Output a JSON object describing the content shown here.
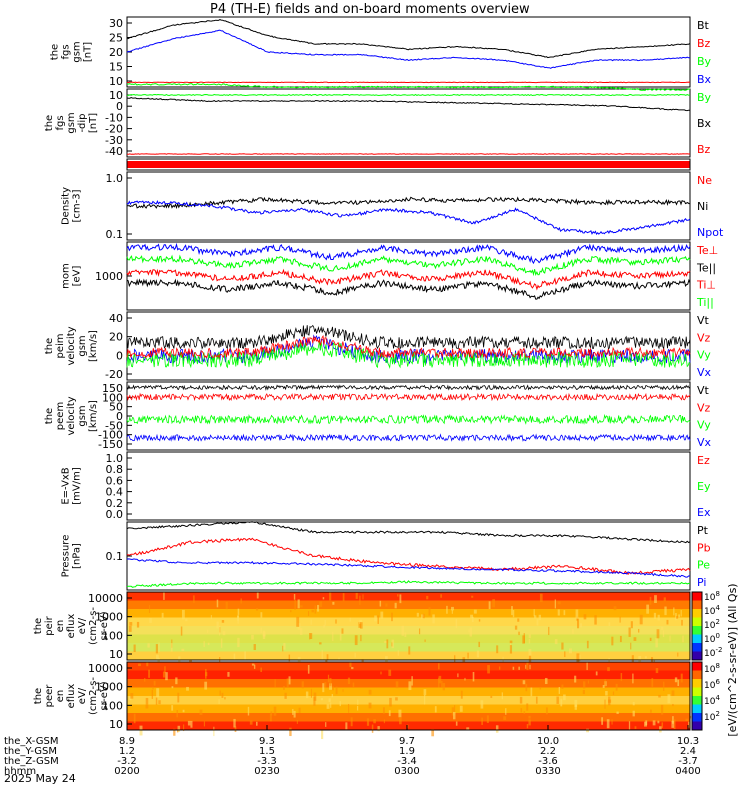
{
  "title": "P4 (TH-E) fields and on-board moments overview",
  "date": "2025 May 24",
  "colors": {
    "black": "#000000",
    "red": "#ff0000",
    "green": "#00ff00",
    "blue": "#0000ff"
  },
  "chart_data": [
    {
      "id": "fgs_mag",
      "type": "line",
      "ylabel": [
        "the",
        "fgs",
        "gsm",
        "[nT]"
      ],
      "yticks": [
        "30",
        "25",
        "20",
        "15",
        "10"
      ],
      "legend": [
        {
          "label": "Bt",
          "color": "#000000"
        },
        {
          "label": "Bz",
          "color": "#ff0000"
        },
        {
          "label": "By",
          "color": "#00ff00"
        },
        {
          "label": "Bx",
          "color": "#0000ff"
        }
      ],
      "series": [
        {
          "name": "Bt",
          "approx": [
            26,
            31,
            33,
            27,
            24,
            24,
            22,
            23,
            22,
            19,
            22,
            23,
            24
          ]
        },
        {
          "name": "By",
          "approx": [
            21,
            26,
            29,
            21,
            20,
            20,
            18,
            19,
            18,
            15,
            18,
            18,
            19
          ]
        },
        {
          "name": "Bx",
          "approx": [
            9,
            9,
            9,
            8,
            8,
            8,
            8,
            8,
            8,
            8,
            8,
            7,
            7
          ]
        }
      ]
    },
    {
      "id": "fgs_comp",
      "type": "line",
      "ylabel": [
        "the",
        "fgs",
        "gsm",
        "-dip",
        "[nT]"
      ],
      "yticks": [
        "10",
        "0",
        "-10",
        "-20",
        "-30",
        "-40"
      ],
      "legend": [
        {
          "label": "By",
          "color": "#00ff00"
        },
        {
          "label": "Bx",
          "color": "#000000"
        },
        {
          "label": "Bz",
          "color": "#ff0000"
        }
      ]
    },
    {
      "id": "efield_bar",
      "type": "bar"
    },
    {
      "id": "density",
      "type": "line",
      "ylabel": [
        "Density",
        "[cm-3]"
      ],
      "yticks": [
        "1.0",
        "0.1"
      ],
      "legend": [
        {
          "label": "Ne",
          "color": "#ff0000"
        },
        {
          "label": "Ni",
          "color": "#000000"
        },
        {
          "label": "Npot",
          "color": "#0000ff"
        }
      ]
    },
    {
      "id": "temp",
      "type": "line",
      "ylabel": [
        "mom",
        "[eV]"
      ],
      "yticks": [
        "1000"
      ],
      "legend": [
        {
          "label": "Te⊥",
          "color": "#ff0000"
        },
        {
          "label": "Te||",
          "color": "#000000"
        },
        {
          "label": "Ti⊥",
          "color": "#ff0000"
        },
        {
          "label": "Ti||",
          "color": "#00ff00"
        }
      ]
    },
    {
      "id": "peim_vel",
      "type": "line",
      "ylabel": [
        "the",
        "peim",
        "velocity",
        "gsm",
        "[km/s]"
      ],
      "yticks": [
        "40",
        "20",
        "0",
        "-20"
      ],
      "legend": [
        {
          "label": "Vt",
          "color": "#000000"
        },
        {
          "label": "Vz",
          "color": "#ff0000"
        },
        {
          "label": "Vy",
          "color": "#00ff00"
        },
        {
          "label": "Vx",
          "color": "#0000ff"
        }
      ]
    },
    {
      "id": "peem_vel",
      "type": "line",
      "ylabel": [
        "the",
        "peem",
        "velocity",
        "gsm",
        "[km/s]"
      ],
      "yticks": [
        "150",
        "100",
        "50",
        "0",
        "-50",
        "-100",
        "-150"
      ],
      "legend": [
        {
          "label": "Vt",
          "color": "#000000"
        },
        {
          "label": "Vz",
          "color": "#ff0000"
        },
        {
          "label": "Vy",
          "color": "#00ff00"
        },
        {
          "label": "Vx",
          "color": "#0000ff"
        }
      ]
    },
    {
      "id": "efield",
      "type": "line",
      "ylabel": [
        "E=-VxB",
        "[mV/m]"
      ],
      "yticks": [
        "1.0",
        "0.8",
        "0.6",
        "0.4",
        "0.2",
        "0.0"
      ],
      "legend": [
        {
          "label": "Ez",
          "color": "#ff0000"
        },
        {
          "label": "Ey",
          "color": "#00ff00"
        },
        {
          "label": "Ex",
          "color": "#0000ff"
        }
      ]
    },
    {
      "id": "pressure",
      "type": "line",
      "ylabel": [
        "Pressure",
        "[nPa]"
      ],
      "yticks": [
        "0.1"
      ],
      "legend": [
        {
          "label": "Pt",
          "color": "#000000"
        },
        {
          "label": "Pb",
          "color": "#ff0000"
        },
        {
          "label": "Pe",
          "color": "#00ff00"
        },
        {
          "label": "Pi",
          "color": "#0000ff"
        }
      ]
    },
    {
      "id": "peir",
      "type": "heatmap",
      "ylabel": [
        "the",
        "peir",
        "en",
        "eflux",
        "eV/",
        "(cm2-s-",
        "sr-eV)"
      ],
      "yticks": [
        "10000",
        "1000",
        "100",
        "10"
      ]
    },
    {
      "id": "peer",
      "type": "heatmap",
      "ylabel": [
        "the",
        "peer",
        "en",
        "eflux",
        "eV/",
        "(cm2-s-",
        "sr-eV)"
      ],
      "yticks": [
        "10000",
        "1000",
        "100",
        "10"
      ]
    }
  ],
  "colorbar": {
    "label": "[eV/(cm^2-s-sr-eV)] (All Qs)",
    "ticks_top": [
      "10^8",
      "10^4",
      "10^2",
      "10^0",
      "10^-2"
    ],
    "ticks_bottom": [
      "10^8",
      "10^6",
      "10^4",
      "10^2"
    ]
  },
  "xaxis": {
    "rows": [
      {
        "label": "the_X-GSM",
        "values": [
          "8.9",
          "9.3",
          "9.7",
          "10.0",
          "10.3"
        ]
      },
      {
        "label": "the_Y-GSM",
        "values": [
          "1.2",
          "1.5",
          "1.9",
          "2.2",
          "2.4"
        ]
      },
      {
        "label": "the_Z-GSM",
        "values": [
          "-3.2",
          "-3.3",
          "-3.4",
          "-3.6",
          "-3.7"
        ]
      },
      {
        "label": "hhmm",
        "values": [
          "0200",
          "0230",
          "0300",
          "0330",
          "0400"
        ]
      }
    ]
  }
}
